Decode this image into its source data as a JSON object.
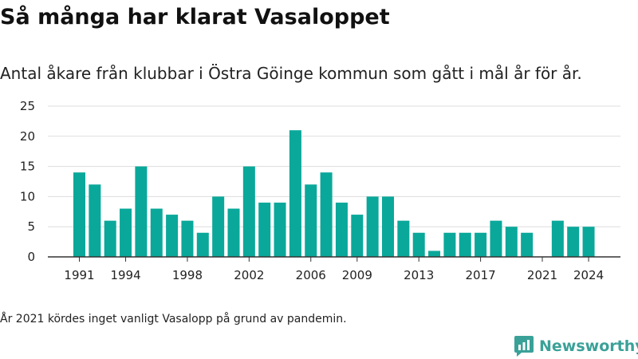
{
  "header": {
    "title": "Så många har klarat Vasaloppet",
    "subtitle": "Antal åkare från klubbar i Östra Göinge kommun som gått i mål år för år."
  },
  "footnote": "År 2021 kördes inget vanligt Vasalopp på grund av pandemin.",
  "brand": {
    "name": "Newsworthy",
    "icon": "bar-chart-speech-icon",
    "color": "#3aa198"
  },
  "colors": {
    "bar": "#0aa89a",
    "grid": "#dddddd",
    "axis": "#333333"
  },
  "chart_data": {
    "type": "bar",
    "categories": [
      1991,
      1992,
      1993,
      1994,
      1995,
      1996,
      1997,
      1998,
      1999,
      2000,
      2001,
      2002,
      2003,
      2004,
      2005,
      2006,
      2007,
      2008,
      2009,
      2010,
      2011,
      2012,
      2013,
      2014,
      2015,
      2016,
      2017,
      2018,
      2019,
      2020,
      2021,
      2022,
      2023,
      2024
    ],
    "values": [
      14,
      12,
      6,
      8,
      15,
      8,
      7,
      6,
      4,
      10,
      8,
      15,
      9,
      9,
      21,
      12,
      14,
      9,
      7,
      10,
      10,
      6,
      4,
      1,
      4,
      4,
      4,
      6,
      5,
      4,
      0,
      6,
      5,
      5
    ],
    "x_tick_labels": [
      1991,
      1994,
      1998,
      2002,
      2006,
      2009,
      2013,
      2017,
      2021,
      2024
    ],
    "y_ticks": [
      0,
      5,
      10,
      15,
      20,
      25
    ],
    "ylim": [
      0,
      25
    ],
    "grid": true,
    "legend": "none"
  }
}
